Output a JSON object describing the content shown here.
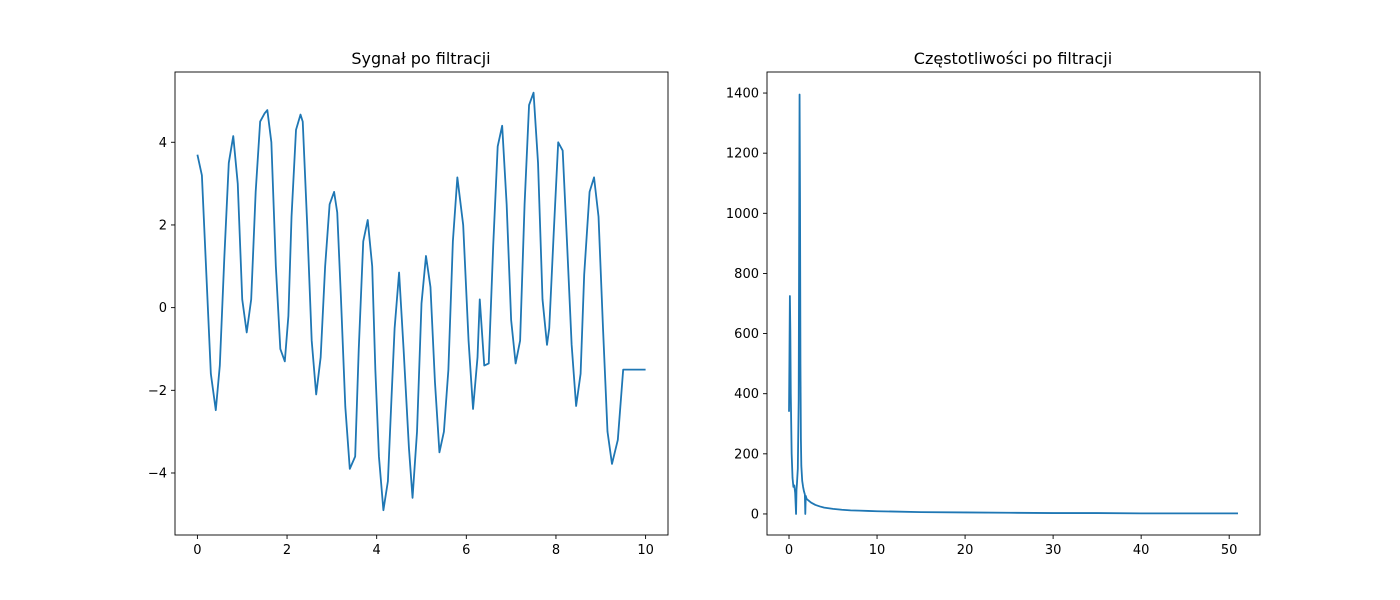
{
  "chart_data": [
    {
      "type": "line",
      "title": "Sygnał po filtracji",
      "xlabel": "",
      "ylabel": "",
      "xlim": [
        -0.5,
        10.5
      ],
      "ylim": [
        -5.5,
        5.7
      ],
      "xticks": [
        0,
        2,
        4,
        6,
        8,
        10
      ],
      "yticks": [
        -4,
        -2,
        0,
        2,
        4
      ],
      "xtick_labels": [
        "0",
        "2",
        "4",
        "6",
        "8",
        "10"
      ],
      "ytick_labels": [
        "−4",
        "−2",
        "0",
        "2",
        "4"
      ],
      "grid": false,
      "color": "#1f77b4",
      "series": [
        {
          "x": [
            0.0,
            0.1,
            0.2,
            0.3,
            0.41,
            0.5,
            0.6,
            0.7,
            0.8,
            0.9,
            1.0,
            1.1,
            1.2,
            1.3,
            1.4,
            1.5,
            1.56,
            1.65,
            1.75,
            1.85,
            1.95,
            2.03,
            2.1,
            2.2,
            2.3,
            2.35,
            2.45,
            2.55,
            2.65,
            2.75,
            2.85,
            2.95,
            3.05,
            3.12,
            3.2,
            3.3,
            3.4,
            3.52,
            3.6,
            3.7,
            3.8,
            3.9,
            3.97,
            4.05,
            4.15,
            4.25,
            4.33,
            4.4,
            4.5,
            4.6,
            4.72,
            4.8,
            4.9,
            5.0,
            5.1,
            5.2,
            5.3,
            5.4,
            5.5,
            5.6,
            5.7,
            5.8,
            5.93,
            6.05,
            6.15,
            6.25,
            6.3,
            6.4,
            6.5,
            6.6,
            6.7,
            6.8,
            6.9,
            7.0,
            7.1,
            7.2,
            7.3,
            7.4,
            7.5,
            7.6,
            7.7,
            7.8,
            7.85,
            7.95,
            8.05,
            8.15,
            8.25,
            8.35,
            8.45,
            8.55,
            8.63,
            8.75,
            8.85,
            8.95,
            9.05,
            9.15,
            9.25,
            9.38,
            9.5,
            9.6,
            9.7,
            9.8,
            9.9,
            10.0
          ],
          "y": [
            3.7,
            3.2,
            0.8,
            -1.6,
            -2.48,
            -1.4,
            1.2,
            3.5,
            4.15,
            3.0,
            0.2,
            -0.6,
            0.2,
            2.8,
            4.5,
            4.7,
            4.78,
            4.0,
            1.0,
            -1.0,
            -1.3,
            -0.2,
            2.2,
            4.3,
            4.67,
            4.5,
            2.0,
            -0.8,
            -2.1,
            -1.2,
            1.0,
            2.5,
            2.8,
            2.3,
            0.3,
            -2.4,
            -3.9,
            -3.6,
            -1.0,
            1.6,
            2.12,
            1.0,
            -1.5,
            -3.6,
            -4.9,
            -4.2,
            -2.2,
            -0.5,
            0.85,
            -1.0,
            -3.4,
            -4.6,
            -3.0,
            0.1,
            1.25,
            0.5,
            -1.8,
            -3.5,
            -3.0,
            -1.5,
            1.6,
            3.15,
            2.0,
            -0.8,
            -2.45,
            -1.2,
            0.2,
            -1.4,
            -1.35,
            1.5,
            3.9,
            4.4,
            2.5,
            -0.3,
            -1.35,
            -0.8,
            2.5,
            4.9,
            5.2,
            3.5,
            0.2,
            -0.9,
            -0.5,
            1.8,
            4.0,
            3.8,
            1.5,
            -0.9,
            -2.38,
            -1.6,
            0.8,
            2.8,
            3.15,
            2.2,
            -0.5,
            -3.0,
            -3.78,
            -3.2,
            -1.5,
            -1.5,
            -1.5,
            -1.5,
            -1.5,
            -1.5
          ]
        }
      ]
    },
    {
      "type": "line",
      "title": "Częstotliwości po filtracji",
      "xlabel": "",
      "ylabel": "",
      "xlim": [
        -2.5,
        53.5
      ],
      "ylim": [
        -70,
        1470
      ],
      "xticks": [
        0,
        10,
        20,
        30,
        40,
        50
      ],
      "yticks": [
        0,
        200,
        400,
        600,
        800,
        1000,
        1200,
        1400
      ],
      "xtick_labels": [
        "0",
        "10",
        "20",
        "30",
        "40",
        "50"
      ],
      "ytick_labels": [
        "0",
        "200",
        "400",
        "600",
        "800",
        "1000",
        "1200",
        "1400"
      ],
      "grid": false,
      "color": "#1f77b4",
      "series": [
        {
          "x": [
            0.0,
            0.05,
            0.1,
            0.15,
            0.2,
            0.3,
            0.4,
            0.5,
            0.6,
            0.7,
            0.8,
            0.85,
            0.9,
            1.0,
            1.1,
            1.15,
            1.2,
            1.25,
            1.3,
            1.35,
            1.4,
            1.5,
            1.6,
            1.7,
            1.8,
            1.85,
            1.9,
            2.0,
            2.5,
            3.0,
            3.5,
            4.0,
            5.0,
            6.0,
            7.0,
            8.0,
            9.0,
            10.0,
            12.0,
            15.0,
            20.0,
            25.0,
            30.0,
            35.0,
            40.0,
            45.0,
            51.0
          ],
          "y": [
            340,
            520,
            725,
            610,
            400,
            200,
            120,
            90,
            95,
            70,
            0,
            80,
            100,
            150,
            380,
            900,
            1395,
            1050,
            500,
            250,
            160,
            110,
            90,
            75,
            65,
            0,
            60,
            50,
            38,
            30,
            25,
            21,
            17,
            14,
            12,
            11,
            10,
            9,
            8,
            6,
            5,
            4,
            3,
            3,
            2,
            2,
            2
          ]
        }
      ]
    }
  ]
}
